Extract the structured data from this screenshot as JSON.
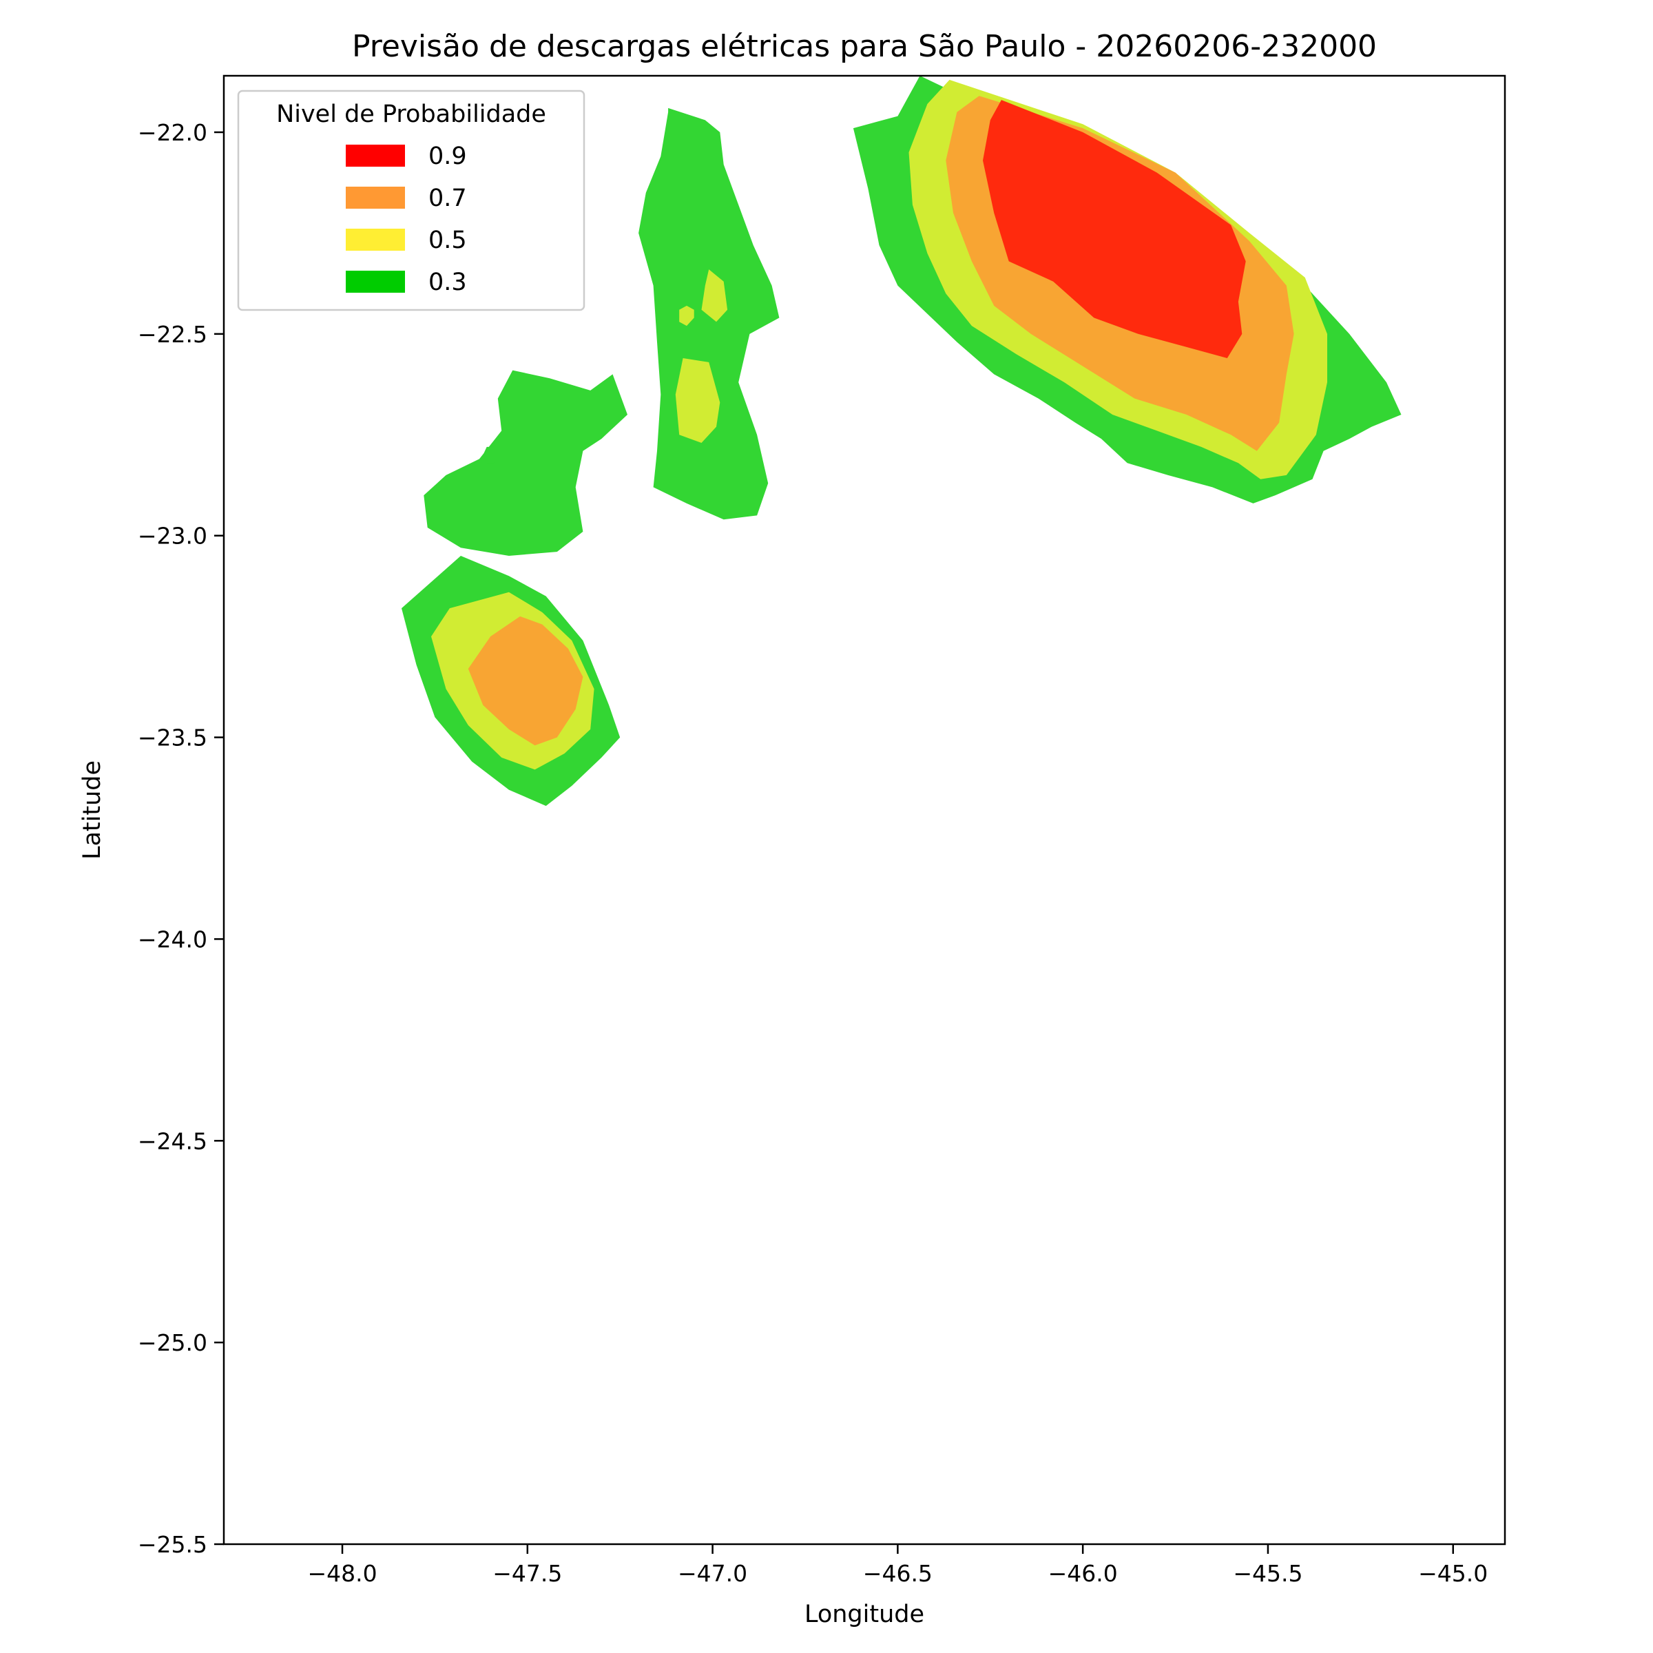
{
  "chart_data": {
    "type": "contour",
    "title": "Previsão de descargas elétricas para São Paulo - 20260206-232000",
    "xlabel": "Longitude",
    "ylabel": "Latitude",
    "xlim": [
      -48.32,
      -44.86
    ],
    "ylim": [
      -25.5,
      -21.86
    ],
    "x_ticks": [
      -48.0,
      -47.5,
      -47.0,
      -46.5,
      -46.0,
      -45.5,
      -45.0
    ],
    "x_tick_labels": [
      "−48.0",
      "−47.5",
      "−47.0",
      "−46.5",
      "−46.0",
      "−45.5",
      "−45.0"
    ],
    "y_ticks": [
      -22.0,
      -22.5,
      -23.0,
      -23.5,
      -24.0,
      -24.5,
      -25.0,
      -25.5
    ],
    "y_tick_labels": [
      "−22.0",
      "−22.5",
      "−23.0",
      "−23.5",
      "−24.0",
      "−24.5",
      "−25.0",
      "−25.5"
    ],
    "grid": false,
    "legend": {
      "title": "Nivel de Probabilidade",
      "placement": "upper-left",
      "entries": [
        {
          "label": "0.9",
          "color": "#ff0000"
        },
        {
          "label": "0.7",
          "color": "#ff9933"
        },
        {
          "label": "0.5",
          "color": "#ffee33"
        },
        {
          "label": "0.3",
          "color": "#00cc00"
        }
      ]
    },
    "fill_colors": {
      "0.3": "#33d633",
      "0.5": "#d1ec33",
      "0.7": "#f8a533",
      "0.9": "#ff2a0d"
    },
    "regions": [
      {
        "level": "0.3",
        "points": [
          [
            -46.44,
            -21.86
          ],
          [
            -46.28,
            -21.93
          ],
          [
            -46.0,
            -22.0
          ],
          [
            -45.75,
            -22.12
          ],
          [
            -45.55,
            -22.27
          ],
          [
            -45.4,
            -22.38
          ],
          [
            -45.28,
            -22.5
          ],
          [
            -45.18,
            -22.62
          ],
          [
            -45.14,
            -22.7
          ],
          [
            -45.22,
            -22.73
          ],
          [
            -45.28,
            -22.76
          ],
          [
            -45.35,
            -22.79
          ],
          [
            -45.38,
            -22.86
          ],
          [
            -45.48,
            -22.9
          ],
          [
            -45.54,
            -22.92
          ],
          [
            -45.65,
            -22.88
          ],
          [
            -45.77,
            -22.85
          ],
          [
            -45.88,
            -22.82
          ],
          [
            -45.95,
            -22.76
          ],
          [
            -46.02,
            -22.72
          ],
          [
            -46.12,
            -22.66
          ],
          [
            -46.24,
            -22.6
          ],
          [
            -46.34,
            -22.52
          ],
          [
            -46.42,
            -22.45
          ],
          [
            -46.5,
            -22.38
          ],
          [
            -46.55,
            -22.28
          ],
          [
            -46.58,
            -22.14
          ],
          [
            -46.62,
            -21.99
          ],
          [
            -46.5,
            -21.96
          ],
          [
            -46.47,
            -21.91
          ]
        ]
      },
      {
        "level": "0.5",
        "points": [
          [
            -46.36,
            -21.87
          ],
          [
            -46.0,
            -21.98
          ],
          [
            -45.75,
            -22.1
          ],
          [
            -45.55,
            -22.25
          ],
          [
            -45.4,
            -22.36
          ],
          [
            -45.34,
            -22.5
          ],
          [
            -45.34,
            -22.62
          ],
          [
            -45.37,
            -22.75
          ],
          [
            -45.45,
            -22.85
          ],
          [
            -45.52,
            -22.86
          ],
          [
            -45.58,
            -22.82
          ],
          [
            -45.68,
            -22.78
          ],
          [
            -45.8,
            -22.74
          ],
          [
            -45.92,
            -22.7
          ],
          [
            -46.05,
            -22.62
          ],
          [
            -46.18,
            -22.55
          ],
          [
            -46.3,
            -22.48
          ],
          [
            -46.37,
            -22.4
          ],
          [
            -46.42,
            -22.3
          ],
          [
            -46.46,
            -22.18
          ],
          [
            -46.47,
            -22.05
          ],
          [
            -46.42,
            -21.93
          ]
        ]
      },
      {
        "level": "0.7",
        "points": [
          [
            -46.28,
            -21.91
          ],
          [
            -46.0,
            -21.99
          ],
          [
            -45.75,
            -22.1
          ],
          [
            -45.55,
            -22.27
          ],
          [
            -45.45,
            -22.38
          ],
          [
            -45.43,
            -22.5
          ],
          [
            -45.45,
            -22.6
          ],
          [
            -45.47,
            -22.72
          ],
          [
            -45.53,
            -22.79
          ],
          [
            -45.6,
            -22.75
          ],
          [
            -45.72,
            -22.7
          ],
          [
            -45.86,
            -22.66
          ],
          [
            -46.0,
            -22.58
          ],
          [
            -46.14,
            -22.5
          ],
          [
            -46.24,
            -22.43
          ],
          [
            -46.3,
            -22.32
          ],
          [
            -46.35,
            -22.2
          ],
          [
            -46.37,
            -22.07
          ],
          [
            -46.34,
            -21.95
          ]
        ]
      },
      {
        "level": "0.9",
        "points": [
          [
            -46.22,
            -21.92
          ],
          [
            -46.0,
            -22.0
          ],
          [
            -45.8,
            -22.1
          ],
          [
            -45.6,
            -22.23
          ],
          [
            -45.56,
            -22.32
          ],
          [
            -45.58,
            -22.42
          ],
          [
            -45.57,
            -22.5
          ],
          [
            -45.61,
            -22.56
          ],
          [
            -45.73,
            -22.53
          ],
          [
            -45.85,
            -22.5
          ],
          [
            -45.97,
            -22.46
          ],
          [
            -46.08,
            -22.37
          ],
          [
            -46.2,
            -22.32
          ],
          [
            -46.24,
            -22.2
          ],
          [
            -46.27,
            -22.07
          ],
          [
            -46.25,
            -21.97
          ]
        ]
      },
      {
        "level": "0.3",
        "points": [
          [
            -47.12,
            -21.94
          ],
          [
            -47.02,
            -21.97
          ],
          [
            -46.98,
            -22.0
          ],
          [
            -46.97,
            -22.08
          ],
          [
            -46.93,
            -22.18
          ],
          [
            -46.89,
            -22.28
          ],
          [
            -46.84,
            -22.38
          ],
          [
            -46.82,
            -22.46
          ],
          [
            -46.9,
            -22.5
          ],
          [
            -46.93,
            -22.62
          ],
          [
            -46.88,
            -22.75
          ],
          [
            -46.85,
            -22.87
          ],
          [
            -46.88,
            -22.95
          ],
          [
            -46.97,
            -22.96
          ],
          [
            -47.07,
            -22.92
          ],
          [
            -47.16,
            -22.88
          ],
          [
            -47.15,
            -22.79
          ],
          [
            -47.14,
            -22.65
          ],
          [
            -47.15,
            -22.52
          ],
          [
            -47.16,
            -22.38
          ],
          [
            -47.2,
            -22.25
          ],
          [
            -47.18,
            -22.15
          ],
          [
            -47.14,
            -22.06
          ],
          [
            -47.12,
            -21.95
          ]
        ]
      },
      {
        "level": "0.5",
        "points": [
          [
            -47.08,
            -22.56
          ],
          [
            -47.01,
            -22.57
          ],
          [
            -46.98,
            -22.67
          ],
          [
            -46.99,
            -22.73
          ],
          [
            -47.03,
            -22.77
          ],
          [
            -47.09,
            -22.75
          ],
          [
            -47.1,
            -22.65
          ]
        ]
      },
      {
        "level": "0.5",
        "points": [
          [
            -47.01,
            -22.34
          ],
          [
            -46.97,
            -22.37
          ],
          [
            -46.96,
            -22.44
          ],
          [
            -46.99,
            -22.47
          ],
          [
            -47.03,
            -22.44
          ],
          [
            -47.02,
            -22.38
          ]
        ]
      },
      {
        "level": "0.5",
        "points": [
          [
            -47.07,
            -22.43
          ],
          [
            -47.09,
            -22.44
          ],
          [
            -47.09,
            -22.47
          ],
          [
            -47.07,
            -22.48
          ],
          [
            -47.05,
            -22.46
          ],
          [
            -47.05,
            -22.44
          ]
        ]
      },
      {
        "level": "0.3",
        "points": [
          [
            -47.54,
            -22.59
          ],
          [
            -47.44,
            -22.61
          ],
          [
            -47.33,
            -22.64
          ],
          [
            -47.27,
            -22.6
          ],
          [
            -47.23,
            -22.7
          ],
          [
            -47.3,
            -22.76
          ],
          [
            -47.35,
            -22.79
          ],
          [
            -47.37,
            -22.88
          ],
          [
            -47.35,
            -22.99
          ],
          [
            -47.42,
            -23.04
          ],
          [
            -47.55,
            -23.05
          ],
          [
            -47.68,
            -23.03
          ],
          [
            -47.77,
            -22.98
          ],
          [
            -47.78,
            -22.9
          ],
          [
            -47.72,
            -22.85
          ],
          [
            -47.63,
            -22.81
          ],
          [
            -47.57,
            -22.74
          ],
          [
            -47.58,
            -22.66
          ]
        ]
      },
      {
        "level": "0.3",
        "points": [
          [
            -47.59,
            -22.78
          ],
          [
            -47.61,
            -22.78
          ],
          [
            -47.62,
            -22.8
          ],
          [
            -47.61,
            -22.82
          ],
          [
            -47.59,
            -22.82
          ],
          [
            -47.58,
            -22.8
          ]
        ]
      },
      {
        "level": "0.3",
        "points": [
          [
            -47.68,
            -23.05
          ],
          [
            -47.55,
            -23.1
          ],
          [
            -47.45,
            -23.15
          ],
          [
            -47.35,
            -23.26
          ],
          [
            -47.28,
            -23.42
          ],
          [
            -47.25,
            -23.5
          ],
          [
            -47.3,
            -23.55
          ],
          [
            -47.38,
            -23.62
          ],
          [
            -47.45,
            -23.67
          ],
          [
            -47.55,
            -23.63
          ],
          [
            -47.65,
            -23.56
          ],
          [
            -47.75,
            -23.45
          ],
          [
            -47.8,
            -23.32
          ],
          [
            -47.84,
            -23.18
          ]
        ]
      },
      {
        "level": "0.5",
        "points": [
          [
            -47.55,
            -23.14
          ],
          [
            -47.46,
            -23.19
          ],
          [
            -47.38,
            -23.26
          ],
          [
            -47.32,
            -23.38
          ],
          [
            -47.33,
            -23.48
          ],
          [
            -47.4,
            -23.54
          ],
          [
            -47.48,
            -23.58
          ],
          [
            -47.57,
            -23.55
          ],
          [
            -47.66,
            -23.47
          ],
          [
            -47.72,
            -23.38
          ],
          [
            -47.76,
            -23.25
          ],
          [
            -47.71,
            -23.18
          ]
        ]
      },
      {
        "level": "0.7",
        "points": [
          [
            -47.52,
            -23.2
          ],
          [
            -47.46,
            -23.22
          ],
          [
            -47.39,
            -23.28
          ],
          [
            -47.35,
            -23.35
          ],
          [
            -47.37,
            -23.43
          ],
          [
            -47.42,
            -23.5
          ],
          [
            -47.48,
            -23.52
          ],
          [
            -47.55,
            -23.48
          ],
          [
            -47.62,
            -23.42
          ],
          [
            -47.66,
            -23.33
          ],
          [
            -47.6,
            -23.25
          ]
        ]
      }
    ]
  }
}
